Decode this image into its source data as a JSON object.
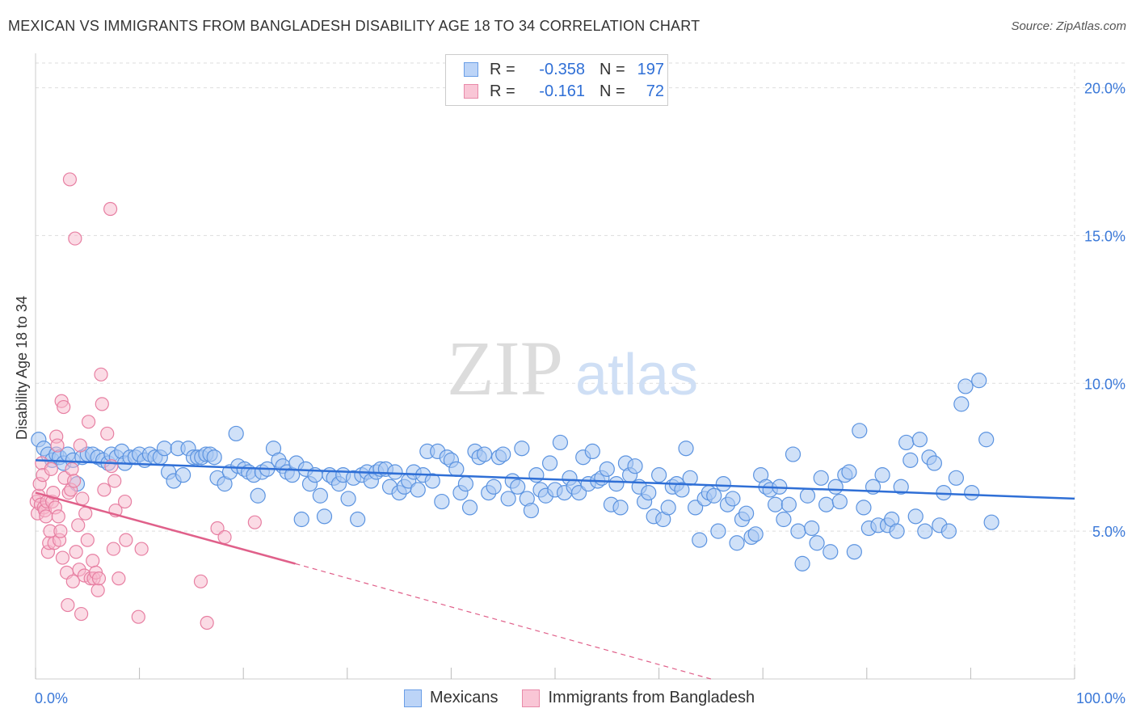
{
  "header": {
    "title": "MEXICAN VS IMMIGRANTS FROM BANGLADESH DISABILITY AGE 18 TO 34 CORRELATION CHART",
    "source": "Source: ZipAtlas.com"
  },
  "legend_top": {
    "rows": [
      {
        "r_label": "R =",
        "r_value": "-0.358",
        "n_label": "N =",
        "n_value": "197"
      },
      {
        "r_label": "R =",
        "r_value": "-0.161",
        "n_label": "N =",
        "n_value": "72"
      }
    ]
  },
  "legend_bottom": {
    "items": [
      {
        "label": "Mexicans"
      },
      {
        "label": "Immigrants from Bangladesh"
      }
    ]
  },
  "watermark": {
    "part1": "ZIP",
    "part2": "atlas"
  },
  "colors": {
    "blue_fill": "#a9c8f2",
    "blue_stroke": "#5b93e0",
    "blue_line": "#2f6fd6",
    "pink_fill": "#f7b8cc",
    "pink_stroke": "#e77fa2",
    "pink_line": "#e0608a",
    "grid": "#dddddd",
    "tick_label": "#3a78d8"
  },
  "chart_data": {
    "type": "scatter",
    "title": "MEXICAN VS IMMIGRANTS FROM BANGLADESH DISABILITY AGE 18 TO 34 CORRELATION CHART",
    "xlabel": "",
    "ylabel": "Disability Age 18 to 34",
    "xlim": [
      0,
      100
    ],
    "ylim": [
      0,
      21
    ],
    "x_tick_labels": [
      "0.0%",
      "100.0%"
    ],
    "y_ticks": [
      5,
      10,
      15,
      20
    ],
    "y_tick_labels": [
      "5.0%",
      "10.0%",
      "15.0%",
      "20.0%"
    ],
    "grid": true,
    "legend_position": "top-center",
    "series": [
      {
        "name": "Mexicans",
        "r": -0.358,
        "n": 197,
        "trend": {
          "x0": 0,
          "y0": 7.4,
          "x1": 100,
          "y1": 6.1
        },
        "points": [
          [
            0.3,
            8.1
          ],
          [
            0.8,
            7.8
          ],
          [
            1.2,
            7.6
          ],
          [
            1.6,
            7.4
          ],
          [
            2,
            7.6
          ],
          [
            2.3,
            7.5
          ],
          [
            2.7,
            7.3
          ],
          [
            3.1,
            7.6
          ],
          [
            3.6,
            7.4
          ],
          [
            4,
            6.6
          ],
          [
            4.5,
            7.5
          ],
          [
            5,
            7.6
          ],
          [
            5.5,
            7.6
          ],
          [
            6,
            7.5
          ],
          [
            6.5,
            7.4
          ],
          [
            7,
            7.3
          ],
          [
            7.3,
            7.6
          ],
          [
            7.8,
            7.5
          ],
          [
            8.3,
            7.7
          ],
          [
            8.6,
            7.3
          ],
          [
            9.1,
            7.5
          ],
          [
            9.6,
            7.5
          ],
          [
            10,
            7.6
          ],
          [
            10.5,
            7.4
          ],
          [
            11,
            7.6
          ],
          [
            11.5,
            7.5
          ],
          [
            12,
            7.5
          ],
          [
            12.4,
            7.8
          ],
          [
            12.8,
            7.0
          ],
          [
            13.3,
            6.7
          ],
          [
            13.7,
            7.8
          ],
          [
            14.2,
            6.9
          ],
          [
            14.7,
            7.8
          ],
          [
            15.2,
            7.5
          ],
          [
            15.6,
            7.5
          ],
          [
            16,
            7.5
          ],
          [
            16.4,
            7.6
          ],
          [
            16.8,
            7.6
          ],
          [
            17.2,
            7.5
          ],
          [
            17.5,
            6.8
          ],
          [
            18.2,
            6.6
          ],
          [
            18.7,
            7.0
          ],
          [
            19.3,
            8.3
          ],
          [
            19.5,
            7.2
          ],
          [
            20.1,
            7.1
          ],
          [
            20.5,
            7.0
          ],
          [
            21,
            6.9
          ],
          [
            21.4,
            6.2
          ],
          [
            21.8,
            7.0
          ],
          [
            22.3,
            7.1
          ],
          [
            22.9,
            7.8
          ],
          [
            23.4,
            7.4
          ],
          [
            23.8,
            7.2
          ],
          [
            24.2,
            7.0
          ],
          [
            24.7,
            6.9
          ],
          [
            25.1,
            7.3
          ],
          [
            25.6,
            5.4
          ],
          [
            26,
            7.1
          ],
          [
            26.4,
            6.6
          ],
          [
            26.9,
            6.9
          ],
          [
            27.4,
            6.2
          ],
          [
            27.8,
            5.5
          ],
          [
            28.3,
            6.9
          ],
          [
            28.7,
            6.8
          ],
          [
            29.2,
            6.6
          ],
          [
            29.6,
            6.9
          ],
          [
            30.1,
            6.1
          ],
          [
            30.6,
            6.8
          ],
          [
            31,
            5.4
          ],
          [
            31.4,
            6.9
          ],
          [
            31.9,
            7.0
          ],
          [
            32.3,
            6.7
          ],
          [
            32.8,
            7.0
          ],
          [
            33.2,
            7.1
          ],
          [
            33.7,
            7.1
          ],
          [
            34.1,
            6.5
          ],
          [
            34.6,
            7.0
          ],
          [
            35,
            6.3
          ],
          [
            35.5,
            6.5
          ],
          [
            35.9,
            6.7
          ],
          [
            36.4,
            7.0
          ],
          [
            36.8,
            6.4
          ],
          [
            37.3,
            6.9
          ],
          [
            37.7,
            7.7
          ],
          [
            38.2,
            6.7
          ],
          [
            38.7,
            7.7
          ],
          [
            39.1,
            6.0
          ],
          [
            39.6,
            7.5
          ],
          [
            40,
            7.4
          ],
          [
            40.5,
            7.1
          ],
          [
            40.9,
            6.3
          ],
          [
            41.4,
            6.6
          ],
          [
            41.8,
            5.8
          ],
          [
            42.3,
            7.7
          ],
          [
            42.7,
            7.5
          ],
          [
            43.2,
            7.6
          ],
          [
            43.6,
            6.3
          ],
          [
            44.1,
            6.5
          ],
          [
            44.6,
            7.5
          ],
          [
            45,
            7.6
          ],
          [
            45.5,
            6.1
          ],
          [
            45.9,
            6.7
          ],
          [
            46.4,
            6.5
          ],
          [
            46.8,
            7.8
          ],
          [
            47.3,
            6.1
          ],
          [
            47.7,
            5.7
          ],
          [
            48.2,
            6.9
          ],
          [
            48.6,
            6.4
          ],
          [
            49.1,
            6.2
          ],
          [
            49.5,
            7.3
          ],
          [
            50,
            6.4
          ],
          [
            50.5,
            8.0
          ],
          [
            50.9,
            6.3
          ],
          [
            51.4,
            6.8
          ],
          [
            51.8,
            6.5
          ],
          [
            52.3,
            6.3
          ],
          [
            52.7,
            7.5
          ],
          [
            53.2,
            6.6
          ],
          [
            53.6,
            7.7
          ],
          [
            54.1,
            6.7
          ],
          [
            54.5,
            6.8
          ],
          [
            55,
            7.1
          ],
          [
            55.4,
            5.9
          ],
          [
            55.9,
            6.6
          ],
          [
            56.3,
            5.8
          ],
          [
            56.8,
            7.3
          ],
          [
            57.2,
            6.9
          ],
          [
            57.7,
            7.2
          ],
          [
            58.1,
            6.5
          ],
          [
            58.6,
            6.0
          ],
          [
            59,
            6.3
          ],
          [
            59.5,
            5.5
          ],
          [
            60,
            6.9
          ],
          [
            60.4,
            5.4
          ],
          [
            60.9,
            5.8
          ],
          [
            61.3,
            6.5
          ],
          [
            61.7,
            6.6
          ],
          [
            62.2,
            6.4
          ],
          [
            62.6,
            7.8
          ],
          [
            63,
            6.8
          ],
          [
            63.5,
            5.8
          ],
          [
            63.9,
            4.7
          ],
          [
            64.4,
            6.1
          ],
          [
            64.8,
            6.3
          ],
          [
            65.3,
            6.2
          ],
          [
            65.7,
            5.0
          ],
          [
            66.2,
            6.6
          ],
          [
            66.6,
            5.9
          ],
          [
            67.1,
            6.1
          ],
          [
            67.5,
            4.6
          ],
          [
            68,
            5.4
          ],
          [
            68.4,
            5.6
          ],
          [
            68.9,
            4.8
          ],
          [
            69.3,
            4.9
          ],
          [
            69.8,
            6.9
          ],
          [
            70.3,
            6.5
          ],
          [
            70.7,
            6.4
          ],
          [
            71.2,
            5.9
          ],
          [
            71.6,
            6.5
          ],
          [
            72,
            5.4
          ],
          [
            72.5,
            5.9
          ],
          [
            72.9,
            7.6
          ],
          [
            73.4,
            5.0
          ],
          [
            73.8,
            3.9
          ],
          [
            74.3,
            6.2
          ],
          [
            74.7,
            5.1
          ],
          [
            75.2,
            4.6
          ],
          [
            75.6,
            6.8
          ],
          [
            76.1,
            5.9
          ],
          [
            76.5,
            4.3
          ],
          [
            77,
            6.5
          ],
          [
            77.4,
            6.0
          ],
          [
            77.9,
            6.9
          ],
          [
            78.3,
            7.0
          ],
          [
            78.8,
            4.3
          ],
          [
            79.3,
            8.4
          ],
          [
            79.7,
            5.8
          ],
          [
            80.2,
            5.1
          ],
          [
            80.6,
            6.5
          ],
          [
            81.1,
            5.2
          ],
          [
            81.5,
            6.9
          ],
          [
            82,
            5.2
          ],
          [
            82.4,
            5.4
          ],
          [
            82.9,
            5.0
          ],
          [
            83.3,
            6.5
          ],
          [
            83.8,
            8.0
          ],
          [
            84.2,
            7.4
          ],
          [
            84.7,
            5.5
          ],
          [
            85.1,
            8.1
          ],
          [
            85.6,
            5.0
          ],
          [
            86,
            7.5
          ],
          [
            86.5,
            7.3
          ],
          [
            87,
            5.2
          ],
          [
            87.4,
            6.3
          ],
          [
            87.9,
            5.0
          ],
          [
            88.6,
            6.8
          ],
          [
            89.1,
            9.3
          ],
          [
            89.5,
            9.9
          ],
          [
            90.1,
            6.3
          ],
          [
            90.8,
            10.1
          ],
          [
            91.5,
            8.1
          ],
          [
            92,
            5.3
          ]
        ]
      },
      {
        "name": "Immigrants from Bangladesh",
        "r": -0.161,
        "n": 72,
        "trend": {
          "x0": 0,
          "y0": 6.3,
          "x1": 25,
          "y1": 3.9,
          "dash_to_x": 65,
          "dash_to_y": 0
        },
        "points": [
          [
            0.1,
            6.0
          ],
          [
            0.2,
            5.6
          ],
          [
            0.3,
            6.2
          ],
          [
            0.4,
            6.6
          ],
          [
            0.5,
            5.9
          ],
          [
            0.6,
            7.3
          ],
          [
            0.7,
            6.9
          ],
          [
            0.8,
            5.8
          ],
          [
            0.9,
            5.7
          ],
          [
            1,
            5.5
          ],
          [
            1.1,
            6.0
          ],
          [
            1.2,
            4.3
          ],
          [
            1.3,
            4.6
          ],
          [
            1.4,
            5.0
          ],
          [
            1.5,
            7.1
          ],
          [
            1.6,
            6.0
          ],
          [
            1.7,
            6.3
          ],
          [
            1.8,
            4.6
          ],
          [
            1.9,
            5.8
          ],
          [
            2,
            8.2
          ],
          [
            2.1,
            7.9
          ],
          [
            2.2,
            5.5
          ],
          [
            2.3,
            4.7
          ],
          [
            2.4,
            5.0
          ],
          [
            2.5,
            9.4
          ],
          [
            2.6,
            4.1
          ],
          [
            2.7,
            9.2
          ],
          [
            2.8,
            6.8
          ],
          [
            3,
            3.6
          ],
          [
            3.1,
            2.5
          ],
          [
            3.2,
            6.3
          ],
          [
            3.3,
            16.9
          ],
          [
            3.4,
            6.4
          ],
          [
            3.5,
            7.1
          ],
          [
            3.6,
            3.3
          ],
          [
            3.7,
            6.7
          ],
          [
            3.8,
            14.9
          ],
          [
            3.9,
            4.3
          ],
          [
            4.1,
            5.2
          ],
          [
            4.2,
            3.7
          ],
          [
            4.3,
            7.9
          ],
          [
            4.4,
            2.2
          ],
          [
            4.5,
            6.1
          ],
          [
            4.7,
            3.5
          ],
          [
            4.8,
            5.6
          ],
          [
            5,
            4.7
          ],
          [
            5.1,
            8.7
          ],
          [
            5.3,
            3.4
          ],
          [
            5.5,
            4.0
          ],
          [
            5.6,
            3.4
          ],
          [
            5.8,
            3.6
          ],
          [
            6,
            3.0
          ],
          [
            6.1,
            3.4
          ],
          [
            6.3,
            10.3
          ],
          [
            6.4,
            9.3
          ],
          [
            6.6,
            6.4
          ],
          [
            6.9,
            8.3
          ],
          [
            7.2,
            15.9
          ],
          [
            7.3,
            7.2
          ],
          [
            7.5,
            4.4
          ],
          [
            7.6,
            6.7
          ],
          [
            7.7,
            5.7
          ],
          [
            8,
            3.4
          ],
          [
            8.6,
            6.0
          ],
          [
            8.7,
            4.7
          ],
          [
            9.9,
            2.1
          ],
          [
            10.2,
            4.4
          ],
          [
            15.9,
            3.3
          ],
          [
            16.5,
            1.9
          ],
          [
            17.5,
            5.1
          ],
          [
            18.2,
            4.8
          ],
          [
            21.1,
            5.3
          ]
        ]
      }
    ]
  }
}
